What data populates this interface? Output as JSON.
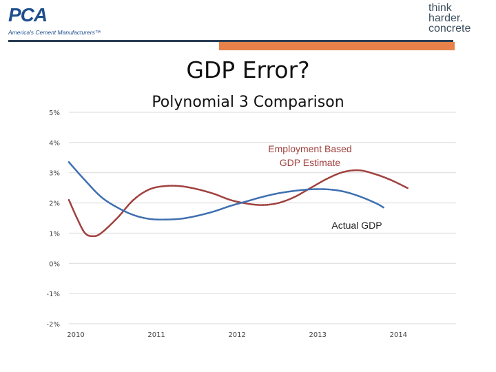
{
  "header": {
    "logo_left_text": "PCA",
    "logo_left_tagline": "America's Cement Manufacturers™",
    "logo_right_lines": [
      "think",
      "harder.",
      "concrete"
    ],
    "colors": {
      "brand_blue": "#1f4e8c",
      "rule": "#2b3f55",
      "accent_orange": "#e8824a"
    }
  },
  "slide": {
    "title": "GDP Error?"
  },
  "chart_data": {
    "type": "line",
    "title": "Polynomial 3 Comparison",
    "xlabel": "",
    "ylabel": "",
    "x_ticks": [
      "2010",
      "2011",
      "2012",
      "2013",
      "2014"
    ],
    "y_ticks": [
      "5%",
      "4%",
      "3%",
      "2%",
      "1%",
      "0%",
      "-1%",
      "-2%"
    ],
    "xlim": [
      2010,
      2014.8
    ],
    "ylim": [
      -2,
      5
    ],
    "grid": true,
    "series": [
      {
        "name": "Employment Based GDP Estimate",
        "color": "#a0413e",
        "style": "dotted",
        "points": [
          [
            2010.0,
            2.1
          ],
          [
            2010.1,
            1.5
          ],
          [
            2010.2,
            1.0
          ],
          [
            2010.3,
            0.9
          ],
          [
            2010.4,
            1.0
          ],
          [
            2010.6,
            1.5
          ],
          [
            2010.8,
            2.1
          ],
          [
            2011.0,
            2.45
          ],
          [
            2011.2,
            2.56
          ],
          [
            2011.4,
            2.55
          ],
          [
            2011.6,
            2.45
          ],
          [
            2011.8,
            2.3
          ],
          [
            2012.0,
            2.1
          ],
          [
            2012.2,
            1.98
          ],
          [
            2012.4,
            1.93
          ],
          [
            2012.6,
            2.0
          ],
          [
            2012.8,
            2.2
          ],
          [
            2013.0,
            2.5
          ],
          [
            2013.2,
            2.8
          ],
          [
            2013.4,
            3.02
          ],
          [
            2013.6,
            3.08
          ],
          [
            2013.8,
            2.95
          ],
          [
            2014.0,
            2.75
          ],
          [
            2014.2,
            2.49
          ]
        ]
      },
      {
        "name": "Actual GDP",
        "color": "#3e6fb0",
        "style": "dotted",
        "points": [
          [
            2010.0,
            3.35
          ],
          [
            2010.2,
            2.75
          ],
          [
            2010.4,
            2.2
          ],
          [
            2010.6,
            1.85
          ],
          [
            2010.8,
            1.6
          ],
          [
            2011.0,
            1.47
          ],
          [
            2011.2,
            1.45
          ],
          [
            2011.4,
            1.48
          ],
          [
            2011.6,
            1.58
          ],
          [
            2011.8,
            1.72
          ],
          [
            2012.0,
            1.9
          ],
          [
            2012.2,
            2.05
          ],
          [
            2012.4,
            2.2
          ],
          [
            2012.6,
            2.32
          ],
          [
            2012.8,
            2.4
          ],
          [
            2013.0,
            2.45
          ],
          [
            2013.2,
            2.45
          ],
          [
            2013.4,
            2.38
          ],
          [
            2013.6,
            2.22
          ],
          [
            2013.8,
            2.0
          ],
          [
            2013.9,
            1.85
          ]
        ]
      }
    ],
    "annotations": [
      {
        "series": 0,
        "lines": [
          "Employment Based",
          "GDP Estimate"
        ],
        "color": "#a0413e"
      },
      {
        "series": 1,
        "lines": [
          "Actual GDP"
        ],
        "color": "#222222"
      }
    ]
  }
}
